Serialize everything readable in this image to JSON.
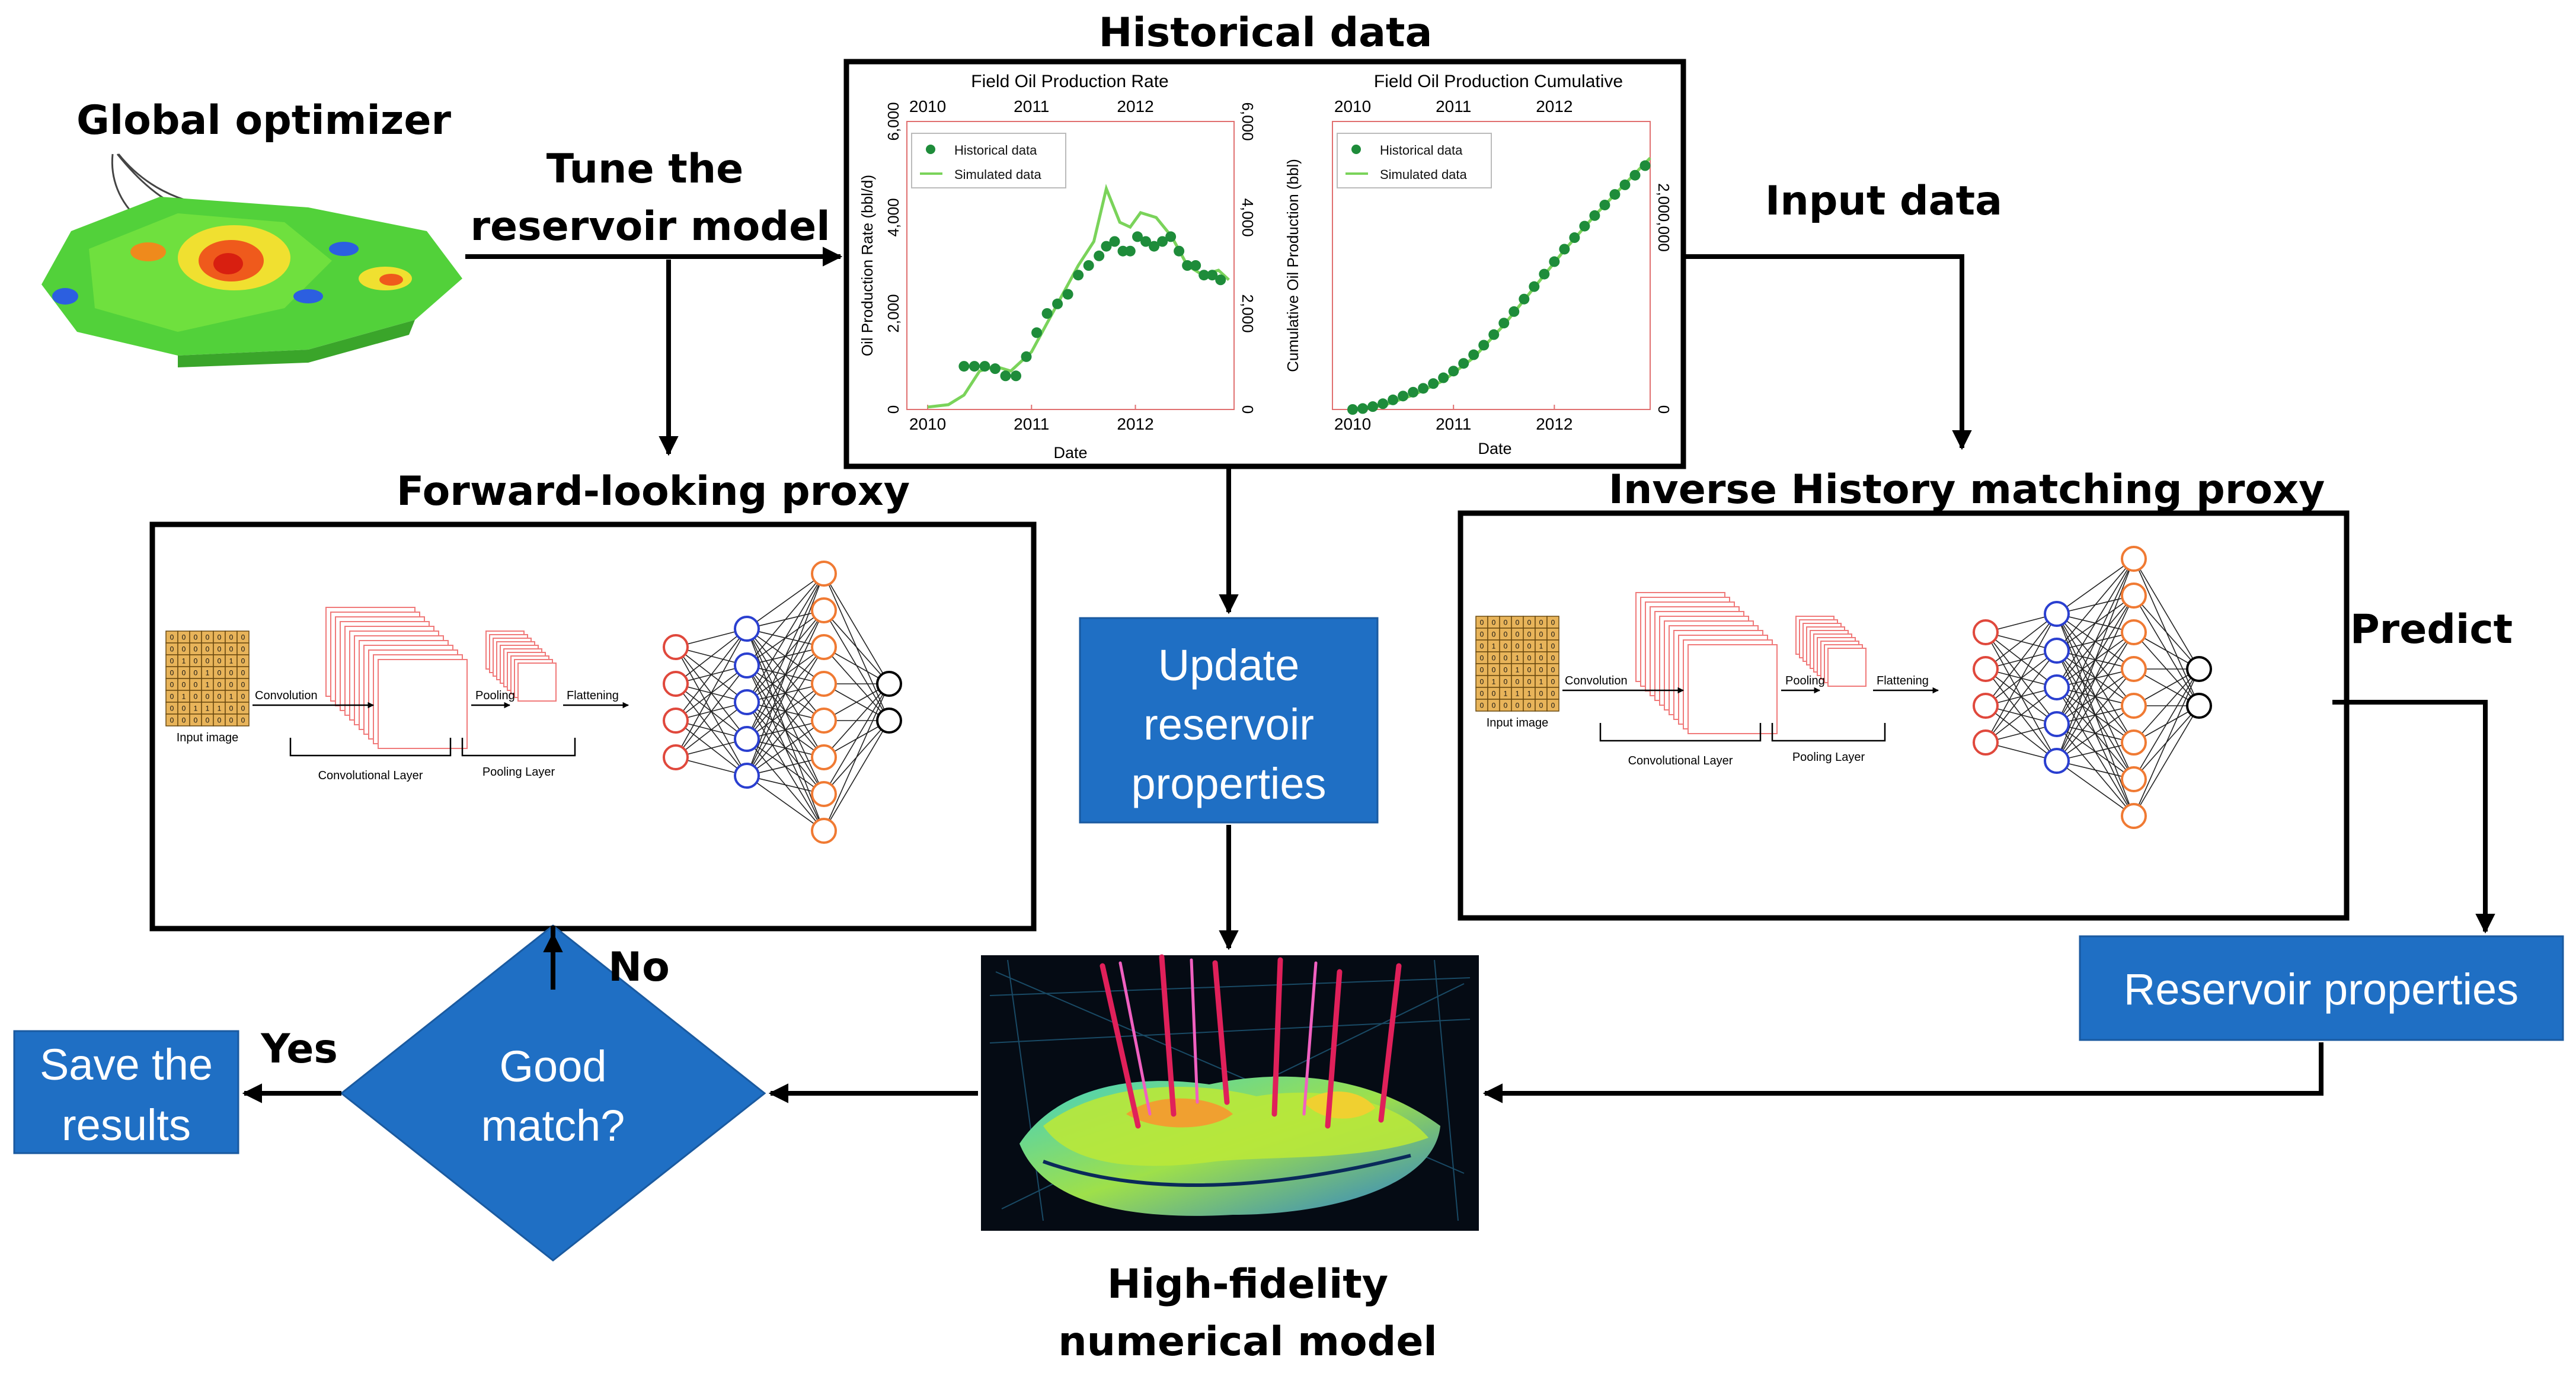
{
  "labels": {
    "global_optimizer": "Global optimizer",
    "tune_line1": "Tune the",
    "tune_line2": "reservoir model",
    "historical_data": "Historical data",
    "input_data": "Input data",
    "forward_proxy": "Forward-looking proxy",
    "inverse_proxy": "Inverse History matching proxy",
    "predict": "Predict",
    "no": "No",
    "yes": "Yes",
    "hifi_line1": "High-fidelity",
    "hifi_line2": "numerical model"
  },
  "boxes": {
    "update_line1": "Update",
    "update_line2": "reservoir",
    "update_line3": "properties",
    "reservoir_properties": "Reservoir properties",
    "save_line1": "Save the",
    "save_line2": "results",
    "decision_line1": "Good",
    "decision_line2": "match?"
  },
  "cnn": {
    "input_label": "Input image",
    "convolution": "Convolution",
    "pooling": "Pooling",
    "flattening": "Flattening",
    "conv_layer": "Convolutional Layer",
    "pool_layer": "Pooling Layer",
    "grid_rows": [
      "0 0 0 0 0 0 0",
      "0 0 0 0 0 0 0",
      "0 1 0 0 0 1 0",
      "0 0 0 1 0 0 0",
      "0 0 0 1 0 0 0",
      "0 1 0 0 0 1 0",
      "0 0 1 1 1 0 0",
      "0 0 0 0 0 0 0"
    ]
  },
  "colors": {
    "box_blue": "#1f6fc4",
    "arrow": "#000000",
    "node_red": "#e0483c",
    "node_blue": "#2a3fd0",
    "node_orange": "#f07a33",
    "grid_fill": "#e8b45a",
    "filter_red": "#f07a7a",
    "hist_point": "#1e8c3a",
    "sim_line": "#7ad35a"
  },
  "chart_data": [
    {
      "type": "line",
      "title": "Field Oil Production Rate",
      "xlabel": "Date",
      "ylabel": "Oil Production Rate (bbl/d)",
      "x_ticks": [
        "2010",
        "2011",
        "2012"
      ],
      "y_ticks": [
        "0",
        "2,000",
        "4,000",
        "6,000"
      ],
      "y_ticks_right": [
        "0",
        "2,000",
        "4,000",
        "6,000"
      ],
      "ylim": [
        0,
        6000
      ],
      "xlim": [
        2009.8,
        2012.95
      ],
      "legend": [
        "Historical data",
        "Simulated data"
      ],
      "legend_position": "top-left",
      "series": [
        {
          "name": "Historical data",
          "x": [
            2010.35,
            2010.45,
            2010.55,
            2010.65,
            2010.75,
            2010.85,
            2010.95,
            2011.05,
            2011.15,
            2011.25,
            2011.35,
            2011.45,
            2011.55,
            2011.65,
            2011.72,
            2011.8,
            2011.88,
            2011.95,
            2012.02,
            2012.1,
            2012.18,
            2012.26,
            2012.34,
            2012.42,
            2012.5,
            2012.58,
            2012.66,
            2012.74,
            2012.82
          ],
          "y": [
            900,
            900,
            900,
            850,
            700,
            700,
            1100,
            1600,
            2000,
            2200,
            2400,
            2800,
            3000,
            3200,
            3400,
            3500,
            3300,
            3300,
            3600,
            3500,
            3400,
            3500,
            3600,
            3300,
            3000,
            3000,
            2800,
            2800,
            2700
          ]
        },
        {
          "name": "Simulated data",
          "x": [
            2010.0,
            2010.2,
            2010.35,
            2010.5,
            2010.65,
            2010.8,
            2011.0,
            2011.15,
            2011.3,
            2011.45,
            2011.6,
            2011.72,
            2011.85,
            2011.95,
            2012.05,
            2012.2,
            2012.35,
            2012.5,
            2012.65,
            2012.8,
            2012.9
          ],
          "y": [
            50,
            100,
            300,
            800,
            900,
            800,
            1200,
            1800,
            2400,
            3000,
            3500,
            4600,
            3900,
            3800,
            4100,
            4000,
            3600,
            3000,
            2800,
            2900,
            2700
          ]
        }
      ]
    },
    {
      "type": "line",
      "title": "Field Oil Production Cumulative",
      "xlabel": "Date",
      "ylabel": "Cumulative Oil Production (bbl)",
      "x_ticks": [
        "2010",
        "2011",
        "2012"
      ],
      "y_ticks_right": [
        "0",
        "2,000,000"
      ],
      "ylim": [
        0,
        3000000
      ],
      "xlim": [
        2009.8,
        2012.95
      ],
      "legend": [
        "Historical data",
        "Simulated data"
      ],
      "legend_position": "top-left",
      "series": [
        {
          "name": "Historical data",
          "x": [
            2010.0,
            2010.1,
            2010.2,
            2010.3,
            2010.4,
            2010.5,
            2010.6,
            2010.7,
            2010.8,
            2010.9,
            2011.0,
            2011.1,
            2011.2,
            2011.3,
            2011.4,
            2011.5,
            2011.6,
            2011.7,
            2011.8,
            2011.9,
            2012.0,
            2012.1,
            2012.2,
            2012.3,
            2012.4,
            2012.5,
            2012.6,
            2012.7,
            2012.8,
            2012.9
          ],
          "y": [
            0,
            10000,
            30000,
            60000,
            100000,
            140000,
            180000,
            220000,
            270000,
            330000,
            400000,
            480000,
            570000,
            670000,
            780000,
            900000,
            1020000,
            1150000,
            1280000,
            1410000,
            1540000,
            1670000,
            1790000,
            1910000,
            2020000,
            2130000,
            2240000,
            2340000,
            2440000,
            2540000
          ]
        },
        {
          "name": "Simulated data",
          "x": [
            2010.0,
            2010.3,
            2010.6,
            2010.9,
            2011.2,
            2011.5,
            2011.8,
            2012.1,
            2012.4,
            2012.7,
            2012.95
          ],
          "y": [
            0,
            40000,
            150000,
            300000,
            540000,
            880000,
            1270000,
            1660000,
            2020000,
            2350000,
            2620000
          ]
        }
      ]
    }
  ]
}
